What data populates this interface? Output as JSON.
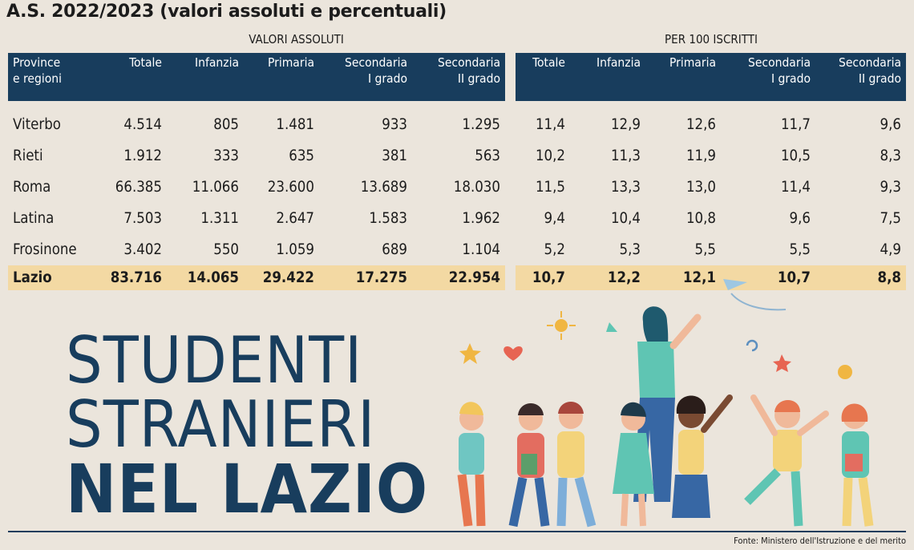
{
  "title": "A.S. 2022/2023 (valori assoluti e percentuali)",
  "group_labels": {
    "absolute": "VALORI ASSOLUTI",
    "per100": "PER 100 ISCRITTI"
  },
  "headline": {
    "line1": "STUDENTI",
    "line2": "STRANIERI",
    "line3": "NEL LAZIO"
  },
  "source": "Fonte: Ministero dell'Istruzione e del merito",
  "colors": {
    "header": "#183d5d",
    "total_row": "#f3d9a3",
    "background": "#ebe5dc"
  },
  "chart_data": {
    "type": "table",
    "title": "A.S. 2022/2023 (valori assoluti e percentuali)",
    "column_groups": [
      "VALORI ASSOLUTI",
      "PER 100 ISCRITTI"
    ],
    "columns": {
      "left": [
        [
          "Province",
          "e regioni"
        ],
        [
          "Totale"
        ],
        [
          "Infanzia"
        ],
        [
          "Primaria"
        ],
        [
          "Secondaria",
          "I grado"
        ],
        [
          "Secondaria",
          "II grado"
        ]
      ],
      "right": [
        [
          "Totale"
        ],
        [
          "Infanzia"
        ],
        [
          "Primaria"
        ],
        [
          "Secondaria",
          "I grado"
        ],
        [
          "Secondaria",
          "II grado"
        ]
      ]
    },
    "rows": [
      {
        "name": "Viterbo",
        "absolute": [
          "4.514",
          "805",
          "1.481",
          "933",
          "1.295"
        ],
        "per100": [
          "11,4",
          "12,9",
          "12,6",
          "11,7",
          "9,6"
        ]
      },
      {
        "name": "Rieti",
        "absolute": [
          "1.912",
          "333",
          "635",
          "381",
          "563"
        ],
        "per100": [
          "10,2",
          "11,3",
          "11,9",
          "10,5",
          "8,3"
        ]
      },
      {
        "name": "Roma",
        "absolute": [
          "66.385",
          "11.066",
          "23.600",
          "13.689",
          "18.030"
        ],
        "per100": [
          "11,5",
          "13,3",
          "13,0",
          "11,4",
          "9,3"
        ]
      },
      {
        "name": "Latina",
        "absolute": [
          "7.503",
          "1.311",
          "2.647",
          "1.583",
          "1.962"
        ],
        "per100": [
          "9,4",
          "10,4",
          "10,8",
          "9,6",
          "7,5"
        ]
      },
      {
        "name": "Frosinone",
        "absolute": [
          "3.402",
          "550",
          "1.059",
          "689",
          "1.104"
        ],
        "per100": [
          "5,2",
          "5,3",
          "5,5",
          "5,5",
          "4,9"
        ]
      }
    ],
    "total": {
      "name": "Lazio",
      "absolute": [
        "83.716",
        "14.065",
        "29.422",
        "17.275",
        "22.954"
      ],
      "per100": [
        "10,7",
        "12,2",
        "12,1",
        "10,7",
        "8,8"
      ]
    }
  }
}
